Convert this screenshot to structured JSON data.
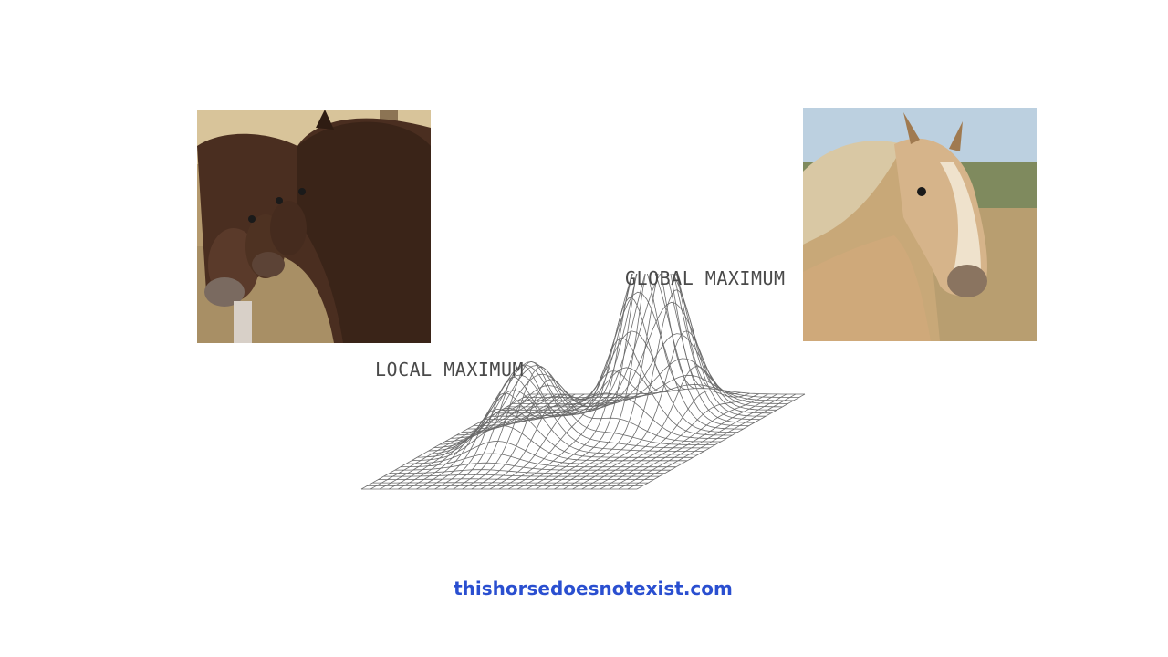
{
  "labels": {
    "global": "GLOBAL MAXIMUM",
    "local": "LOCAL MAXIMUM"
  },
  "link": {
    "text": "thishorsedoesnotexist.com"
  },
  "images": {
    "left": "horse-heads-distorted-photo",
    "right": "palomino-horse-portrait-photo"
  },
  "colors": {
    "link": "#2a4fd0",
    "label": "#4a4a4a",
    "mesh": "#6b6b6b"
  }
}
